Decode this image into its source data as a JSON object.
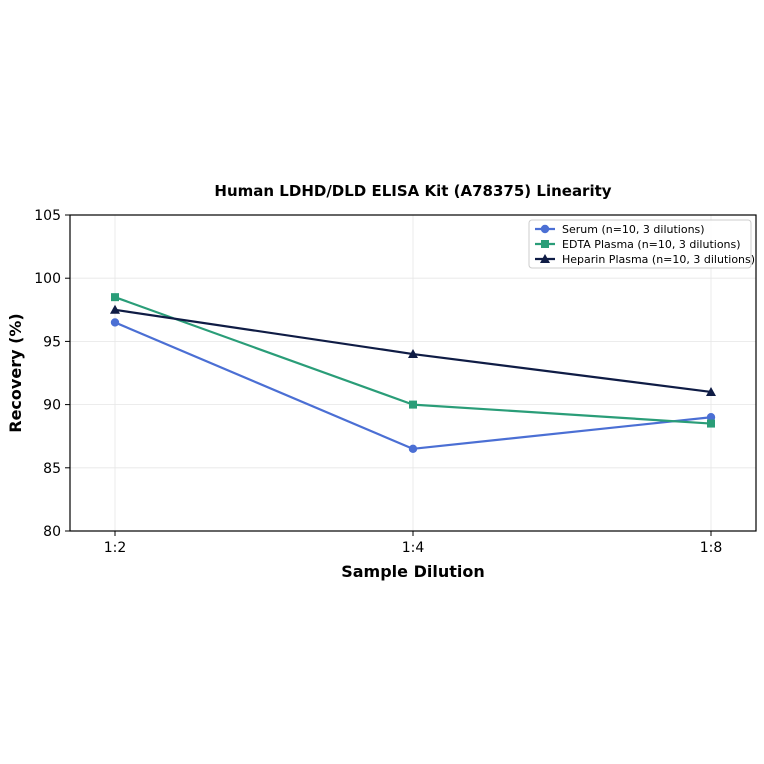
{
  "chart_data": {
    "type": "line",
    "title": "Human LDHD/DLD ELISA Kit (A78375) Linearity",
    "xlabel": "Sample Dilution",
    "ylabel": "Recovery (%)",
    "categories": [
      "1:2",
      "1:4",
      "1:8"
    ],
    "ylim": [
      80,
      105
    ],
    "yticks": [
      80,
      85,
      90,
      95,
      100,
      105
    ],
    "grid": true,
    "legend_position": "top-right",
    "series": [
      {
        "name": "Serum (n=10, 3 dilutions)",
        "values": [
          96.5,
          86.5,
          89.0
        ],
        "color": "#4b6fd4",
        "marker": "circle"
      },
      {
        "name": "EDTA Plasma (n=10, 3 dilutions)",
        "values": [
          98.5,
          90.0,
          88.5
        ],
        "color": "#2a9d78",
        "marker": "square"
      },
      {
        "name": "Heparin Plasma (n=10, 3 dilutions)",
        "values": [
          97.5,
          94.0,
          91.0
        ],
        "color": "#0f1c45",
        "marker": "triangle"
      }
    ]
  }
}
